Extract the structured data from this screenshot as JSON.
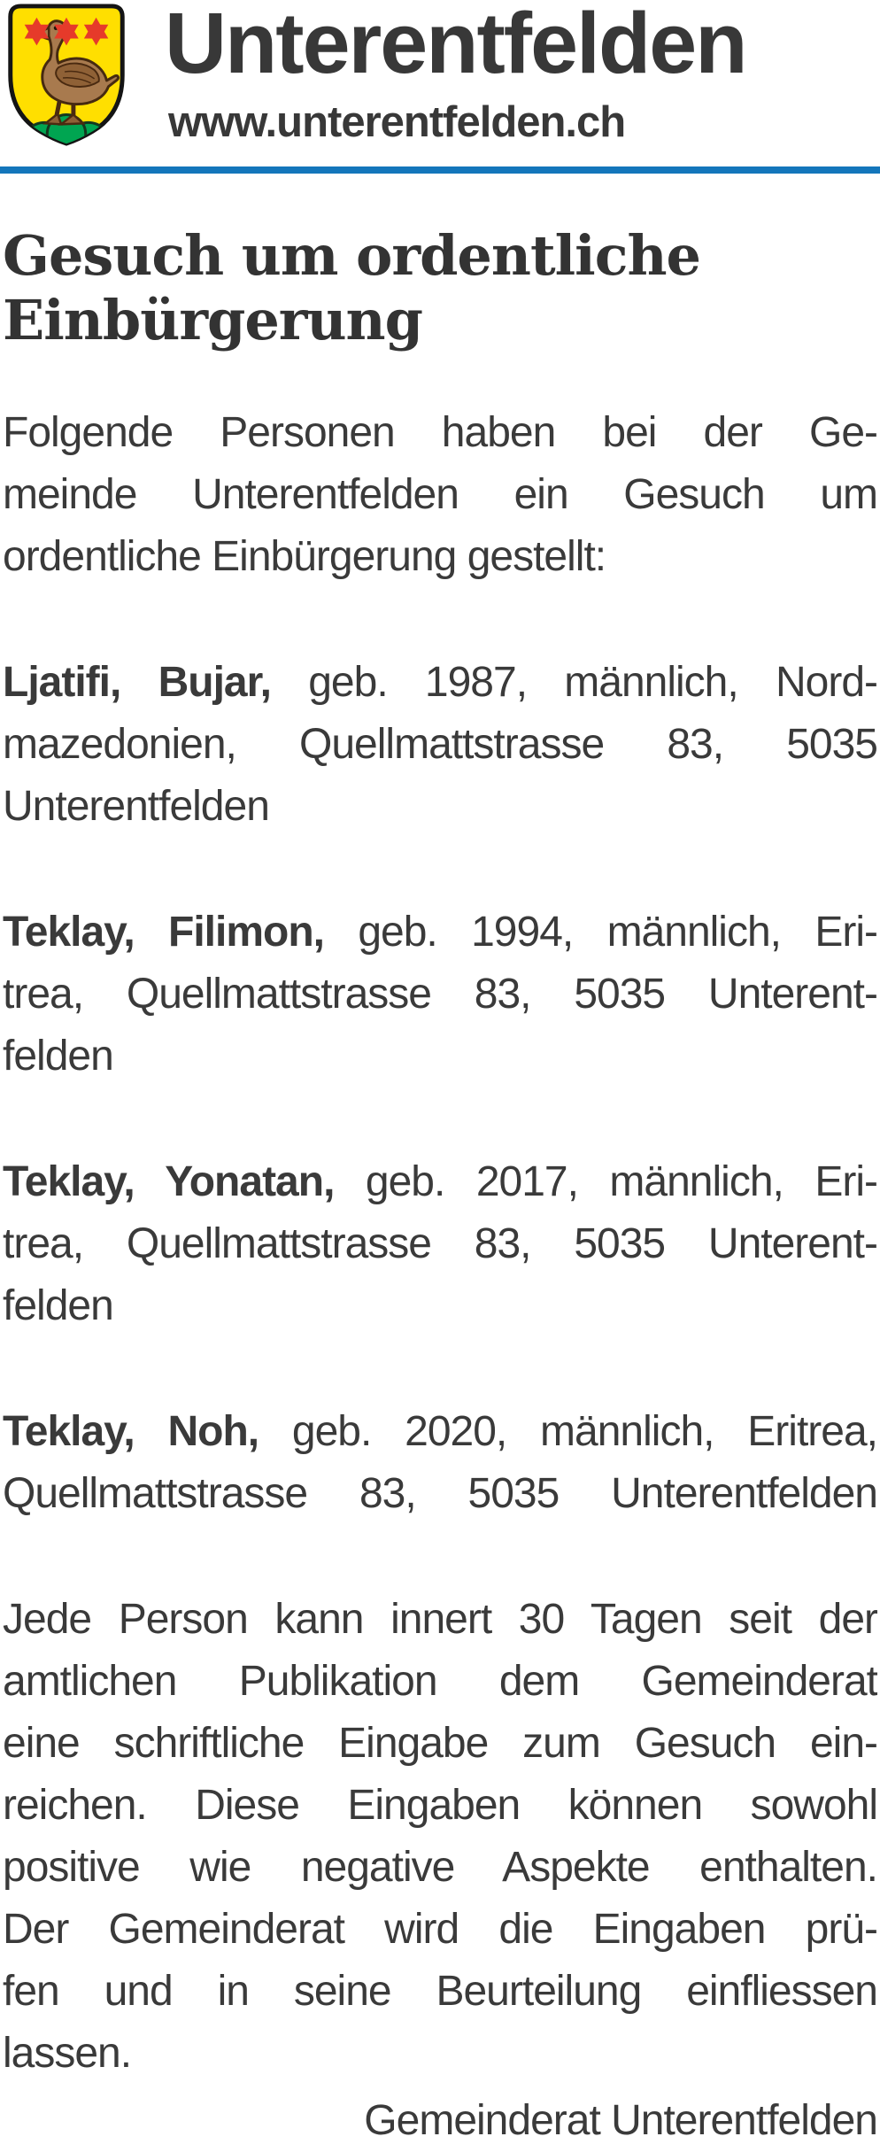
{
  "header": {
    "municipality": "Unterentfelden",
    "website": "www.unterentfelden.ch"
  },
  "icons": {
    "coat_of_arms": "shield-with-duck-and-three-stars"
  },
  "colors": {
    "rule_blue": "#1376bb",
    "text_dark": "#3a3a3a",
    "shield_yellow": "#ffdf00",
    "star_red": "#e63a2a",
    "duck_brown": "#a87a4e",
    "duck_outline": "#462a10",
    "mound_green": "#00a551"
  },
  "article": {
    "title_lines": [
      "Gesuch um ordentliche",
      "Einbürgerung"
    ],
    "intro_lines": [
      {
        "just": true,
        "segments": [
          {
            "t": "Folgende Personen haben bei der Ge-"
          }
        ]
      },
      {
        "just": true,
        "segments": [
          {
            "t": "meinde Unterentfelden ein Gesuch um"
          }
        ]
      },
      {
        "just": false,
        "segments": [
          {
            "t": "ordentliche Einbürgerung gestellt:"
          }
        ]
      }
    ],
    "entries": [
      {
        "name": "Ljatifi, Bujar",
        "lines": [
          {
            "just": true,
            "segments": [
              {
                "t": "Ljatifi, Bujar,",
                "b": true
              },
              {
                "t": " geb. 1987, männlich, Nord-"
              }
            ]
          },
          {
            "just": true,
            "segments": [
              {
                "t": "mazedonien, Quellmattstrasse 83, 5035"
              }
            ]
          },
          {
            "just": false,
            "segments": [
              {
                "t": "Unterentfelden"
              }
            ]
          }
        ]
      },
      {
        "name": "Teklay, Filimon",
        "lines": [
          {
            "just": true,
            "segments": [
              {
                "t": "Teklay, Filimon,",
                "b": true
              },
              {
                "t": " geb. 1994, männlich, Eri-"
              }
            ]
          },
          {
            "just": true,
            "segments": [
              {
                "t": "trea, Quellmattstrasse 83, 5035 Unterent-"
              }
            ]
          },
          {
            "just": false,
            "segments": [
              {
                "t": "felden"
              }
            ]
          }
        ]
      },
      {
        "name": "Teklay, Yonatan",
        "lines": [
          {
            "just": true,
            "segments": [
              {
                "t": "Teklay, Yonatan,",
                "b": true
              },
              {
                "t": " geb. 2017, männlich, Eri-"
              }
            ]
          },
          {
            "just": true,
            "segments": [
              {
                "t": "trea, Quellmattstrasse 83, 5035 Unterent-"
              }
            ]
          },
          {
            "just": false,
            "segments": [
              {
                "t": "felden"
              }
            ]
          }
        ]
      },
      {
        "name": "Teklay, Noh",
        "lines": [
          {
            "just": true,
            "segments": [
              {
                "t": "Teklay, Noh,",
                "b": true
              },
              {
                "t": " geb. 2020, männlich, Eritrea,"
              }
            ]
          },
          {
            "just": true,
            "segments": [
              {
                "t": "Quellmattstrasse 83, 5035 Unterentfelden"
              }
            ]
          }
        ]
      }
    ],
    "closing_lines": [
      {
        "just": true,
        "segments": [
          {
            "t": "Jede Person kann innert 30 Tagen seit der"
          }
        ]
      },
      {
        "just": true,
        "segments": [
          {
            "t": "amtlichen Publikation dem Gemeinderat"
          }
        ]
      },
      {
        "just": true,
        "segments": [
          {
            "t": "eine schriftliche Eingabe zum Gesuch ein-"
          }
        ]
      },
      {
        "just": true,
        "segments": [
          {
            "t": "reichen. Diese Eingaben können sowohl"
          }
        ]
      },
      {
        "just": true,
        "segments": [
          {
            "t": "positive wie negative Aspekte enthalten."
          }
        ]
      },
      {
        "just": true,
        "segments": [
          {
            "t": "Der Gemeinderat wird die Eingaben prü-"
          }
        ]
      },
      {
        "just": true,
        "segments": [
          {
            "t": "fen und in seine Beurteilung einfliessen"
          }
        ]
      },
      {
        "just": false,
        "segments": [
          {
            "t": "lassen."
          }
        ]
      }
    ],
    "signature": "Gemeinderat Unterentfelden"
  }
}
